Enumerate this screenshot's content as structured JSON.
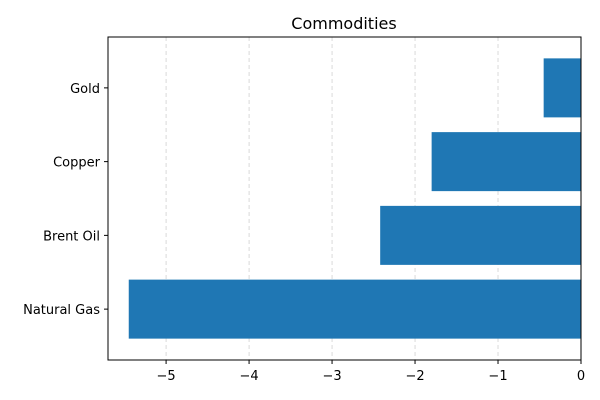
{
  "chart_data": {
    "type": "bar",
    "orientation": "horizontal",
    "title": "Commodities",
    "xlabel": "",
    "ylabel": "",
    "categories": [
      "Natural Gas",
      "Brent Oil",
      "Copper",
      "Gold"
    ],
    "values": [
      -5.45,
      -2.42,
      -1.8,
      -0.45
    ],
    "xlim": [
      -5.7,
      0
    ],
    "xticks": [
      -5,
      -4,
      -3,
      -2,
      -1,
      0
    ],
    "xtick_labels": [
      "−5",
      "−4",
      "−3",
      "−2",
      "−1",
      "0"
    ],
    "grid": {
      "x": true,
      "y": false,
      "style": "dashed"
    },
    "bar_color": "#1f77b4"
  }
}
